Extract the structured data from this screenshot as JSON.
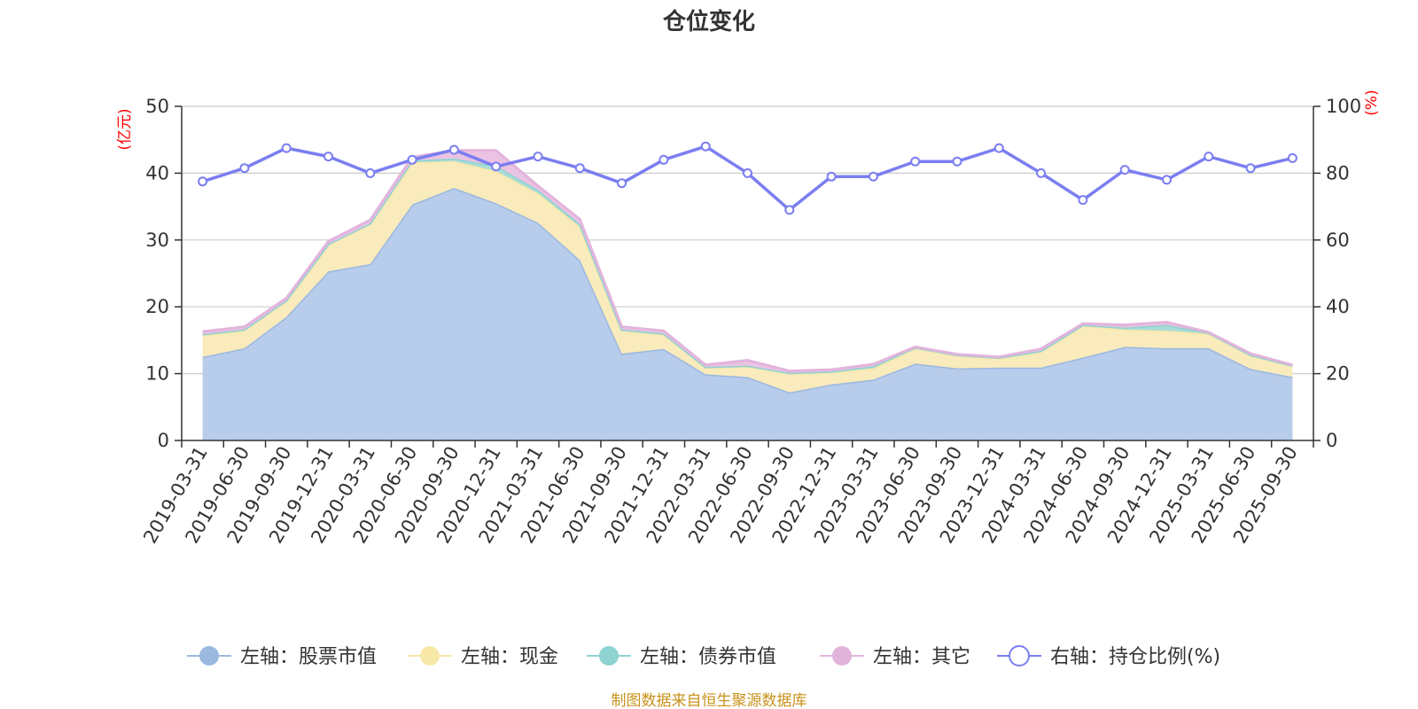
{
  "chart_data": {
    "type": "area",
    "title": "仓位变化",
    "left_axis_unit": "(亿元)",
    "right_axis_unit": "(%)",
    "left_ylim": [
      0,
      50
    ],
    "right_ylim": [
      0,
      100
    ],
    "left_ticks": [
      0,
      10,
      20,
      30,
      40,
      50
    ],
    "right_ticks": [
      0,
      20,
      40,
      60,
      80,
      100
    ],
    "grid": true,
    "legend_position": "bottom",
    "categories": [
      "2019-03-31",
      "2019-06-30",
      "2019-09-30",
      "2019-12-31",
      "2020-03-31",
      "2020-06-30",
      "2020-09-30",
      "2020-12-31",
      "2021-03-31",
      "2021-06-30",
      "2021-09-30",
      "2021-12-31",
      "2022-03-31",
      "2022-06-30",
      "2022-09-30",
      "2022-12-31",
      "2023-03-31",
      "2023-06-30",
      "2023-09-30",
      "2023-12-31",
      "2024-03-31",
      "2024-06-30",
      "2024-09-30",
      "2024-12-31",
      "2025-03-31",
      "2025-06-30",
      "2025-09-30"
    ],
    "series": [
      {
        "name": "左轴：股票市值",
        "axis": "left",
        "color": "#9bb8e0",
        "fill": "#b8cceb",
        "values": [
          12.5,
          13.8,
          18.5,
          25.3,
          26.4,
          35.3,
          37.8,
          35.5,
          32.6,
          27.0,
          13.0,
          13.7,
          9.9,
          9.5,
          7.2,
          8.4,
          9.1,
          11.5,
          10.8,
          10.9,
          10.9,
          12.4,
          14.0,
          13.8,
          13.8,
          10.7,
          9.5
        ]
      },
      {
        "name": "左轴：现金",
        "axis": "left",
        "color": "#f8e8a8",
        "fill": "#f9ebbb",
        "values": [
          3.2,
          2.7,
          2.4,
          4.0,
          6.0,
          6.3,
          4.0,
          4.8,
          4.4,
          5.0,
          3.5,
          2.2,
          1.0,
          1.6,
          2.8,
          1.8,
          1.7,
          2.3,
          1.9,
          1.4,
          2.4,
          4.8,
          2.6,
          2.6,
          2.2,
          2.0,
          1.6
        ]
      },
      {
        "name": "左轴：债券市值",
        "axis": "left",
        "color": "#8fd2d2",
        "fill": "#a9dcd8",
        "values": [
          0.2,
          0.1,
          0.1,
          0.1,
          0.1,
          0.3,
          0.4,
          0.8,
          0.5,
          0.4,
          0.1,
          0.1,
          0.1,
          0.1,
          0.1,
          0.1,
          0.3,
          0.1,
          0.1,
          0.1,
          0.1,
          0.1,
          0.3,
          0.9,
          0.1,
          0.1,
          0.1
        ]
      },
      {
        "name": "左轴：其它",
        "axis": "left",
        "color": "#e2b4dc",
        "fill": "#eac3e2",
        "values": [
          0.4,
          0.4,
          0.3,
          0.4,
          0.5,
          0.5,
          1.2,
          2.3,
          0.6,
          0.7,
          0.4,
          0.4,
          0.3,
          0.8,
          0.3,
          0.3,
          0.3,
          0.1,
          0.1,
          0.1,
          0.3,
          0.2,
          0.4,
          0.4,
          0.1,
          0.2,
          0.1
        ]
      },
      {
        "name": "右轴：持仓比例(%)",
        "axis": "right",
        "color": "#7b7ef0",
        "values": [
          77.5,
          81.5,
          87.5,
          85.0,
          80.0,
          84.0,
          87.0,
          82.0,
          85.0,
          81.5,
          77.0,
          84.0,
          88.0,
          80.0,
          69.0,
          79.0,
          79.0,
          83.5,
          83.5,
          87.5,
          80.0,
          72.0,
          81.0,
          78.0,
          85.0,
          81.5,
          84.5
        ]
      }
    ]
  },
  "source_note": "制图数据来自恒生聚源数据库"
}
